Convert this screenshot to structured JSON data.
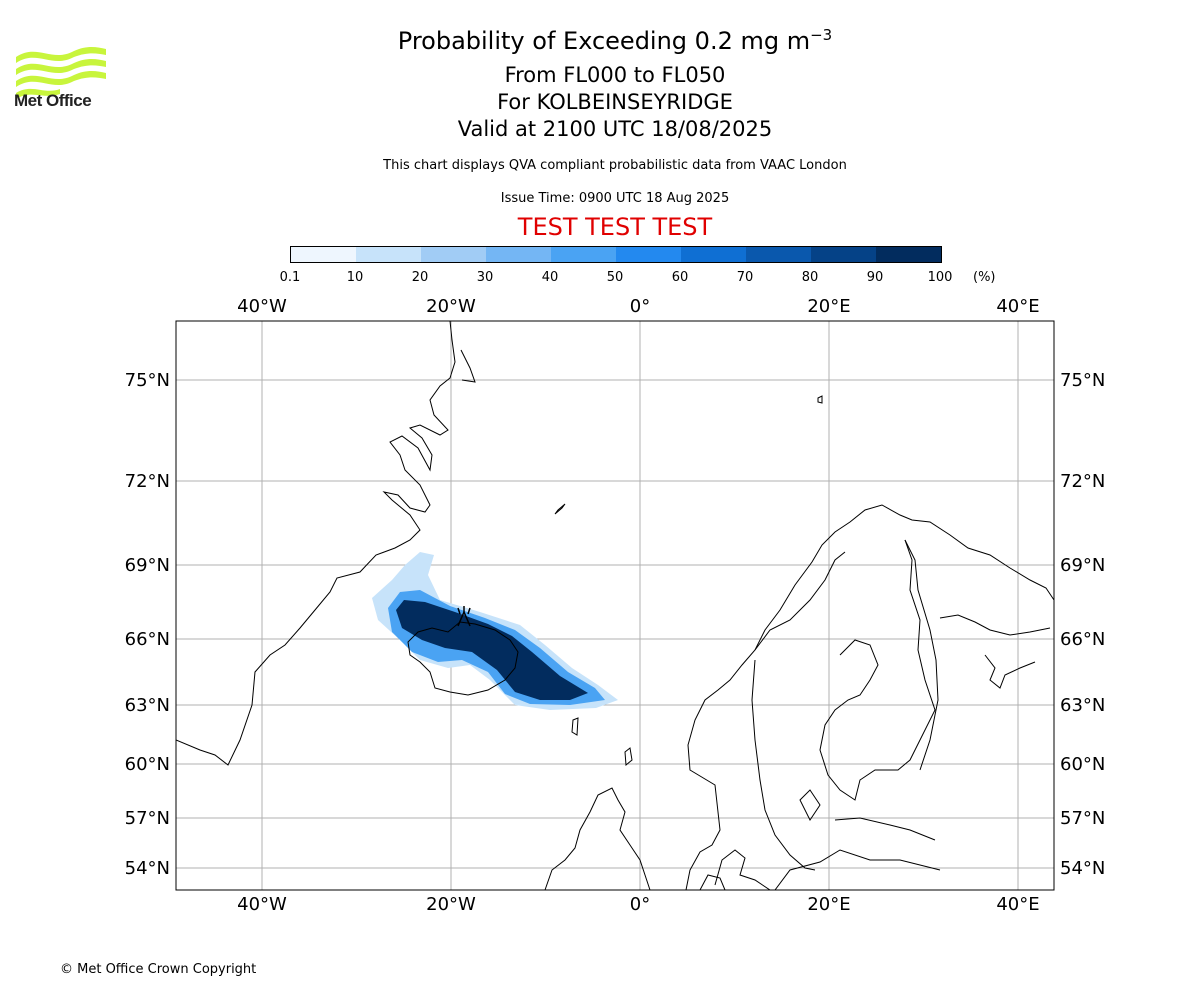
{
  "header": {
    "title_main": "Probability of Exceeding 0.2 mg m",
    "title_exponent": "−3",
    "level_range": "From FL000 to FL050",
    "location": "For KOLBEINSEYRIDGE",
    "valid_time": "Valid at 2100 UTC 18/08/2025",
    "description": "This chart displays QVA compliant probabilistic data from VAAC London",
    "issue_time": "Issue Time: 0900 UTC 18 Aug 2025",
    "test_banner": "TEST TEST TEST"
  },
  "logo": {
    "text": "Met Office",
    "color": "#c8f53c"
  },
  "colorbar": {
    "unit": "(%)",
    "ticks": [
      "0.1",
      "10",
      "20",
      "30",
      "40",
      "50",
      "60",
      "70",
      "80",
      "90",
      "100"
    ],
    "colors": [
      "#eef6fe",
      "#c7e3fa",
      "#a1ccf5",
      "#74b6f4",
      "#4aa3f3",
      "#2389ef",
      "#0f6fd3",
      "#0a58ad",
      "#054287",
      "#022c5e"
    ]
  },
  "map": {
    "lon_labels": [
      "40°W",
      "20°W",
      "0°",
      "20°E",
      "40°E"
    ],
    "lat_labels": [
      "75°N",
      "72°N",
      "69°N",
      "66°N",
      "63°N",
      "60°N",
      "57°N",
      "54°N"
    ],
    "gridline_color": "#b0b0b0",
    "volcano_marker": "volcano-icon"
  },
  "footer": {
    "copyright": "© Met Office Crown Copyright"
  }
}
